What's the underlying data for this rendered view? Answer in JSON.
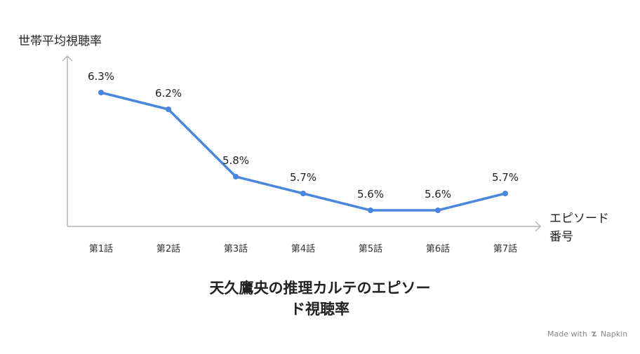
{
  "chart_data": {
    "type": "line",
    "title_line1": "天久鷹央の推理カルテのエピソー",
    "title_line2": "ド視聴率",
    "ylabel": "世帯平均視聴率",
    "xlabel_line1": "エピソード",
    "xlabel_line2": "番号",
    "categories": [
      "第1話",
      "第2話",
      "第3話",
      "第4話",
      "第5話",
      "第6話",
      "第7話"
    ],
    "values": [
      6.3,
      6.2,
      5.8,
      5.7,
      5.6,
      5.6,
      5.7
    ],
    "data_labels": [
      "6.3%",
      "6.2%",
      "5.8%",
      "5.7%",
      "5.6%",
      "5.6%",
      "5.7%"
    ],
    "ylim": [
      5.5,
      6.3
    ],
    "grid": false,
    "legend": "none",
    "line_color": "#4a86e0"
  },
  "footer": {
    "made_with": "Made with",
    "brand": "Napkin"
  }
}
